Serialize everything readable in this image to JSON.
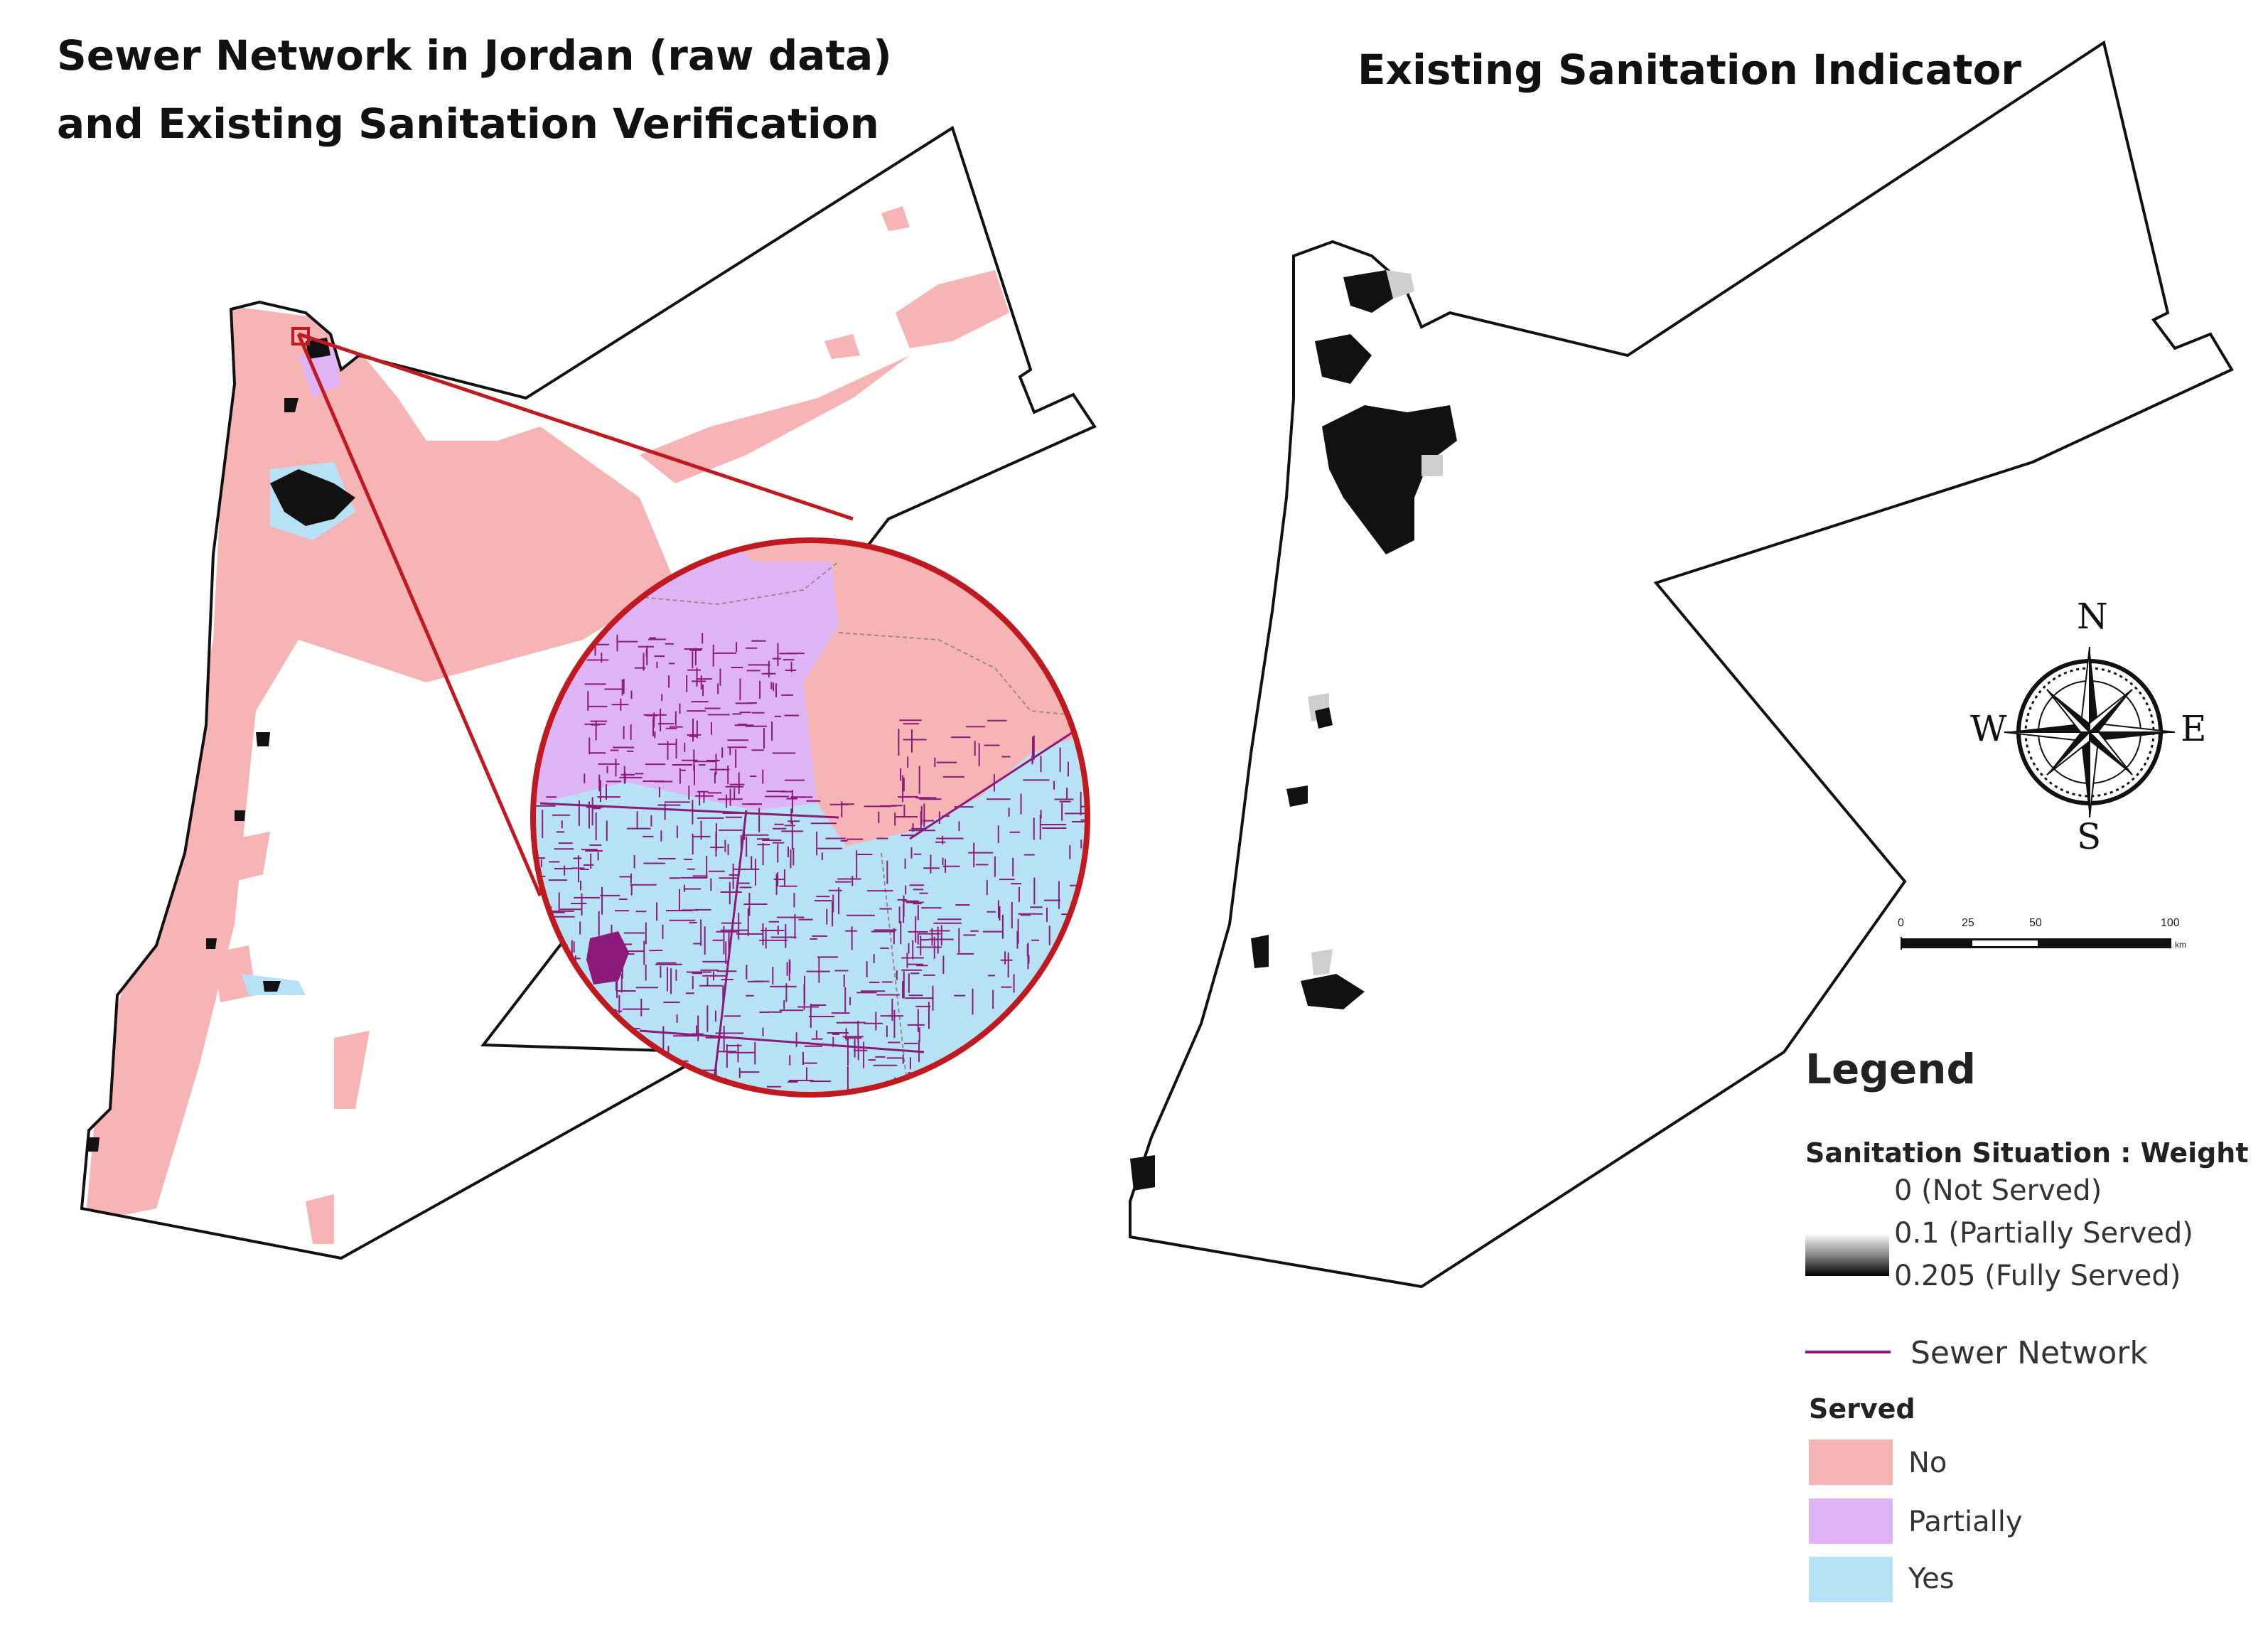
{
  "titles": {
    "left_line1": "Sewer Network in Jordan (raw data)",
    "left_line2": "and Existing Sanitation Verification",
    "right": "Existing Sanitation Indicator"
  },
  "compass": {
    "n": "N",
    "s": "S",
    "e": "E",
    "w": "W"
  },
  "scale_bar": {
    "labels": [
      "0",
      "25",
      "50",
      "100"
    ],
    "unit": "km"
  },
  "legend": {
    "title": "Legend",
    "sanitation_heading": "Sanitation Situation : Weight",
    "gradient": [
      {
        "label": "0 (Not Served)",
        "color": "#ffffff"
      },
      {
        "label": "0.1 (Partially Served)",
        "color": "#8a8a8a"
      },
      {
        "label": "0.205 (Fully Served)",
        "color": "#000000"
      }
    ],
    "sewer_label": "Sewer Network",
    "sewer_color": "#8b1a7a",
    "served_heading": "Served",
    "served": [
      {
        "label": "No",
        "color": "#f7b4b4"
      },
      {
        "label": "Partially",
        "color": "#deb4f5"
      },
      {
        "label": "Yes",
        "color": "#b7e2f5"
      }
    ]
  },
  "colors": {
    "not_served": "#f7b4b4",
    "partially": "#deb4f5",
    "served": "#b7e2f5",
    "sewer": "#8b1a7a",
    "circle_border": "#c0191f",
    "boundary": "#111111"
  }
}
